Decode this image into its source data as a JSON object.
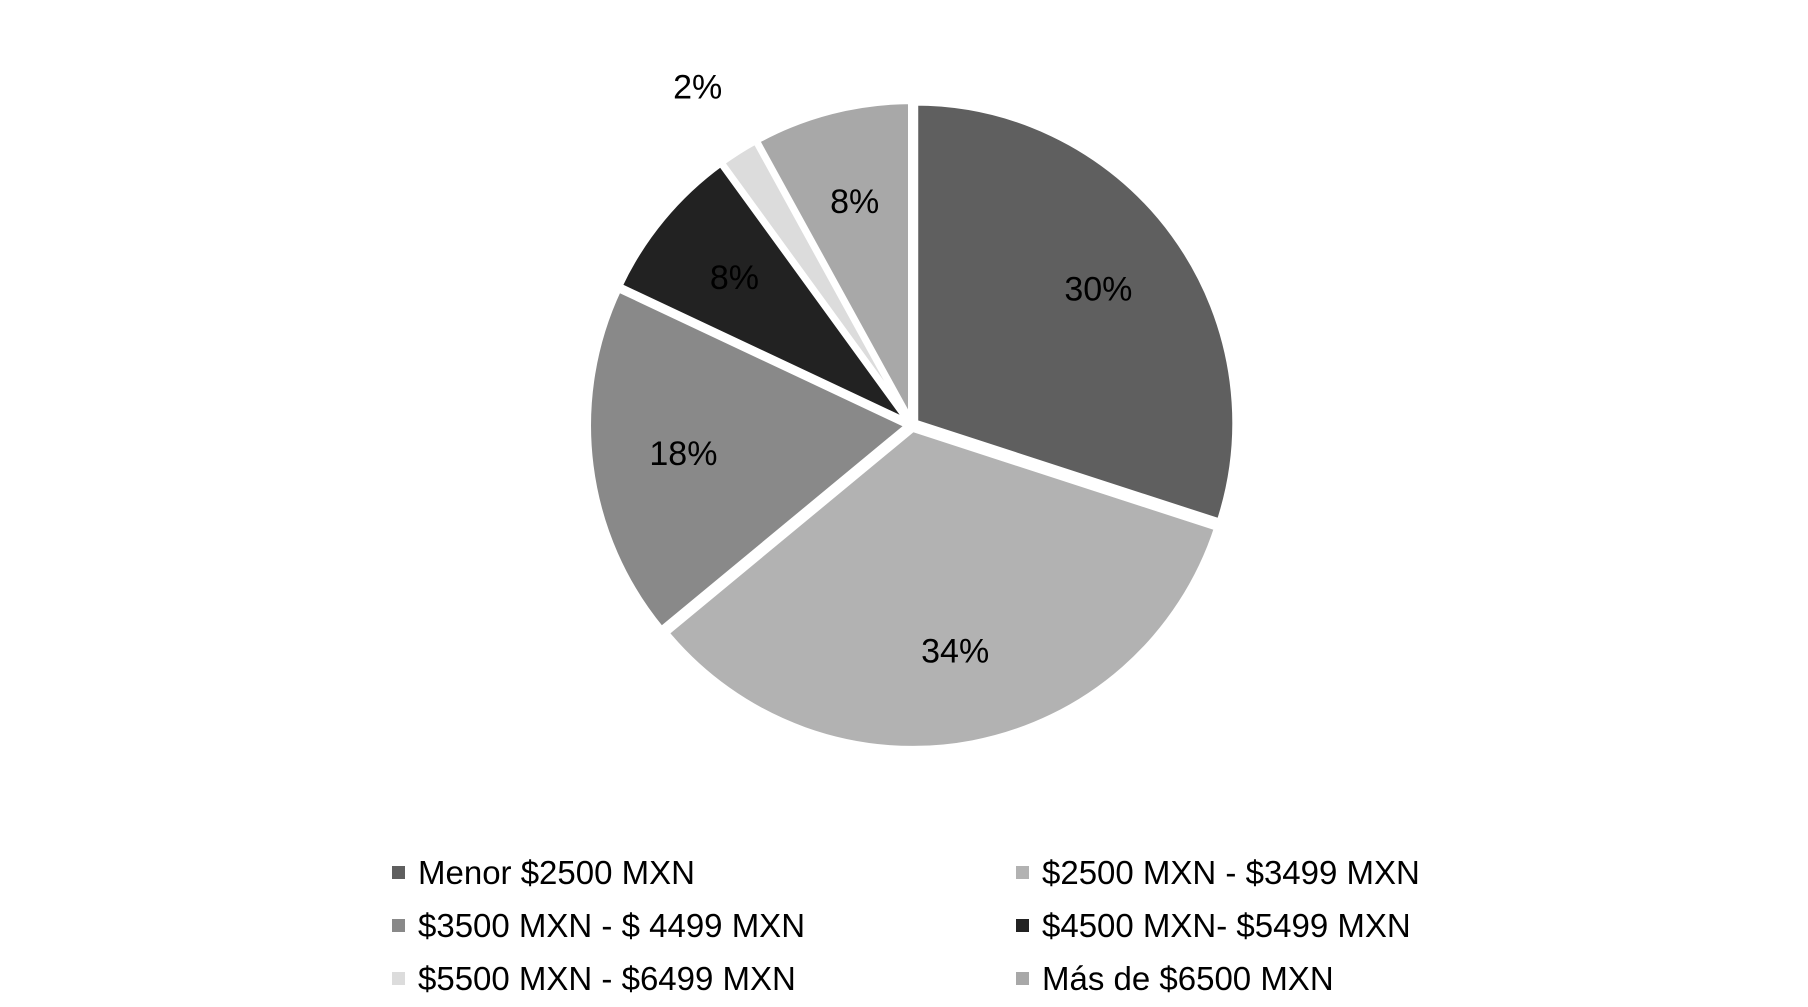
{
  "chart_data": {
    "type": "pie",
    "title": "",
    "start_angle_deg": 0,
    "direction": "clockwise",
    "legend_position": "bottom",
    "slices": [
      {
        "label": "Menor $2500 MXN",
        "value": 30,
        "display": "30%",
        "color": "#5f5f5f"
      },
      {
        "label": "$2500 MXN - $3499 MXN",
        "value": 34,
        "display": "34%",
        "color": "#b2b2b2"
      },
      {
        "label": "$3500 MXN - $ 4499 MXN",
        "value": 18,
        "display": "18%",
        "color": "#898989"
      },
      {
        "label": "$4500 MXN- $5499 MXN",
        "value": 8,
        "display": "8%",
        "color": "#222222"
      },
      {
        "label": "$5500 MXN - $6499 MXN",
        "value": 2,
        "display": "2%",
        "color": "#dcdcdc"
      },
      {
        "label": "Más de $6500 MXN",
        "value": 8,
        "display": "8%",
        "color": "#a8a8a8"
      }
    ]
  }
}
